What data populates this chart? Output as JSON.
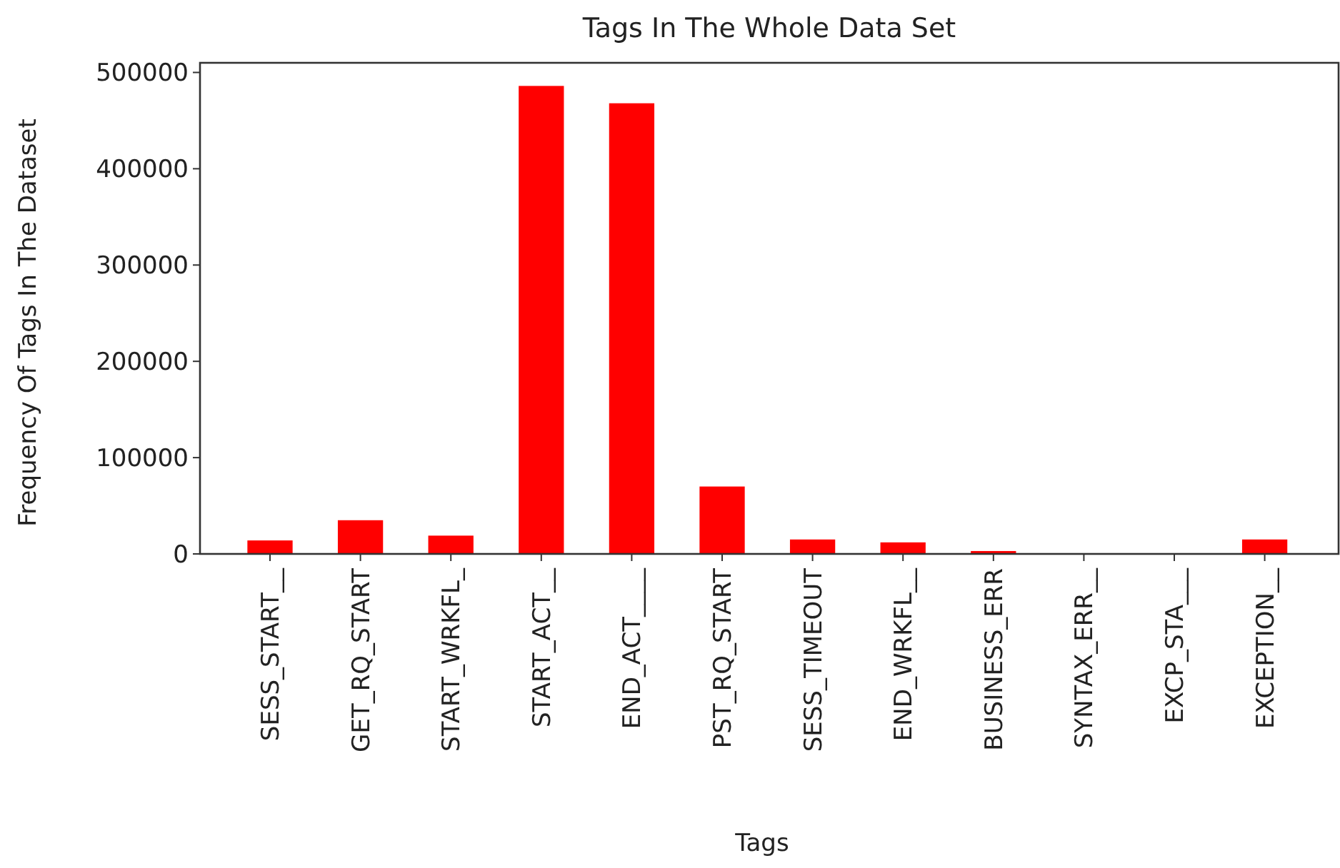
{
  "chart_data": {
    "type": "bar",
    "title": "Tags In The Whole Data Set",
    "xlabel": "Tags",
    "ylabel": "Frequency Of Tags In The Dataset",
    "categories": [
      "SESS_START__",
      "GET_RQ_START",
      "START_WRKFL_",
      "START_ACT__",
      "END_ACT____",
      "PST_RQ_START",
      "SESS_TIMEOUT",
      "END_WRKFL__",
      "BUSINESS_ERR",
      "SYNTAX_ERR__",
      "EXCP_STA___",
      "EXCEPTION__"
    ],
    "values": [
      14000,
      35000,
      19000,
      486000,
      468000,
      70000,
      15000,
      12000,
      3000,
      0,
      0,
      15000
    ],
    "color": "#ff0000",
    "ylim": [
      0,
      510000
    ],
    "yticks": [
      0,
      100000,
      200000,
      300000,
      400000,
      500000
    ]
  }
}
